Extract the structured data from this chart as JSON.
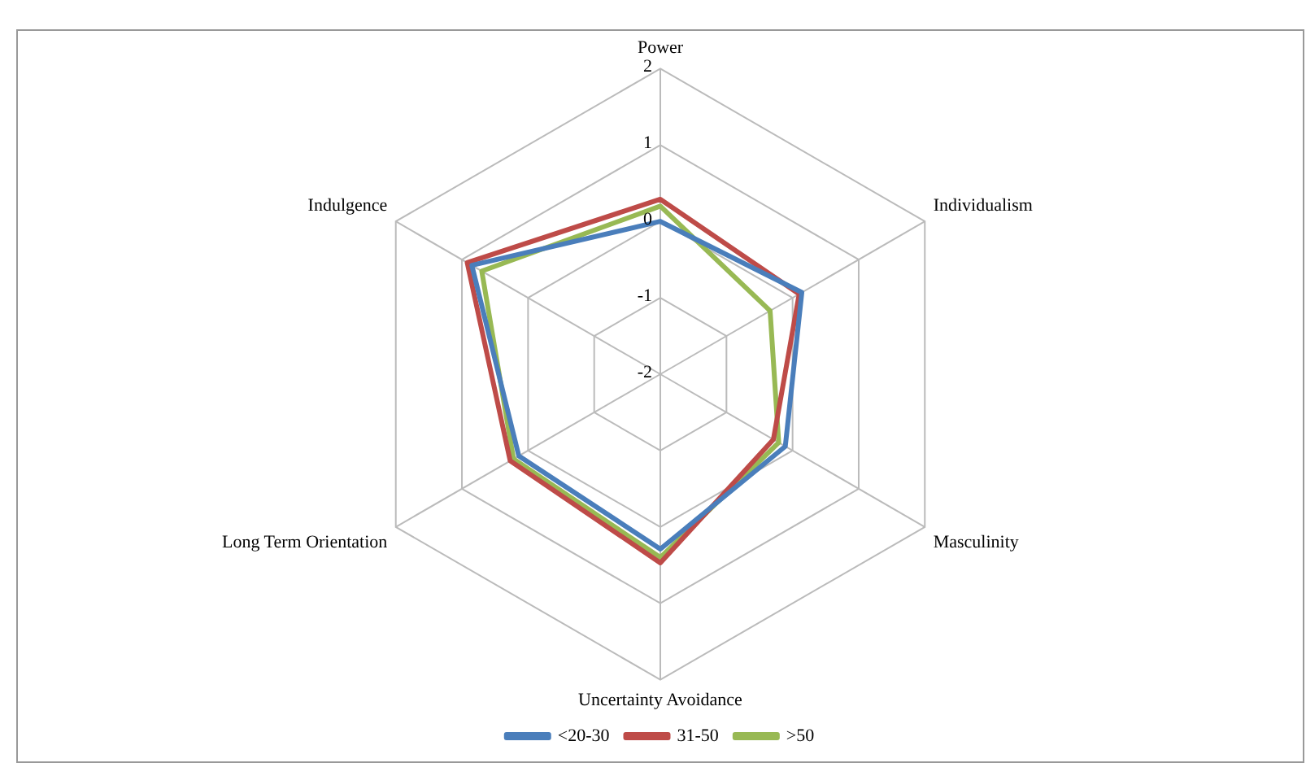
{
  "chart_data": {
    "type": "radar",
    "categories": [
      "Power",
      "Individualism",
      "Masculinity",
      "Uncertainty Avoidance",
      "Long Term Orientation",
      "Indulgence"
    ],
    "series": [
      {
        "name": "<20-30",
        "color": "#4a7ebb",
        "values": [
          0.0,
          0.14,
          -0.11,
          0.29,
          0.14,
          0.85
        ]
      },
      {
        "name": "31-50",
        "color": "#be4b48",
        "values": [
          0.29,
          0.1,
          -0.29,
          0.47,
          0.27,
          0.92
        ]
      },
      {
        "name": ">50",
        "color": "#98b954",
        "values": [
          0.2,
          -0.34,
          -0.21,
          0.4,
          0.22,
          0.7
        ]
      }
    ],
    "ylim": [
      -2,
      2
    ],
    "yticks": [
      -2,
      -1,
      0,
      1,
      2
    ],
    "grid": true,
    "legend": "bottom",
    "marker": "none"
  }
}
